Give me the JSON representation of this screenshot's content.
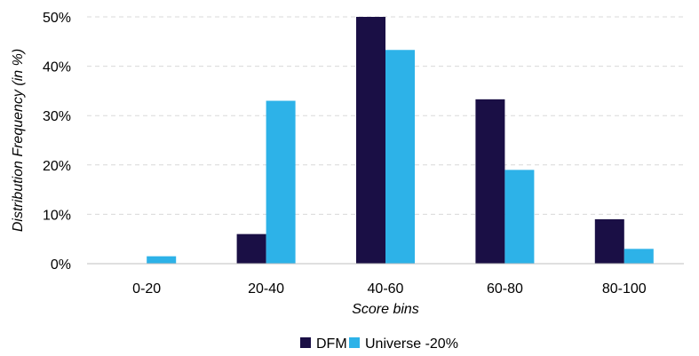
{
  "chart_data": {
    "type": "bar",
    "title": "",
    "xlabel": "Score bins",
    "ylabel": "Distribution Frequency (in %)",
    "categories": [
      "0-20",
      "20-40",
      "40-60",
      "60-80",
      "80-100"
    ],
    "series": [
      {
        "name": "DFM",
        "color": "#1a0f45",
        "values": [
          0,
          6,
          50,
          33.3,
          9
        ]
      },
      {
        "name": "Universe -20%",
        "color": "#2db2e8",
        "values": [
          1.5,
          33,
          43.3,
          19,
          3
        ]
      }
    ],
    "ylim": [
      0,
      50
    ],
    "yticks": [
      0,
      10,
      20,
      30,
      40,
      50
    ],
    "ytick_labels": [
      "0%",
      "10%",
      "20%",
      "30%",
      "40%",
      "50%"
    ],
    "grid": true,
    "legend_position": "bottom"
  }
}
